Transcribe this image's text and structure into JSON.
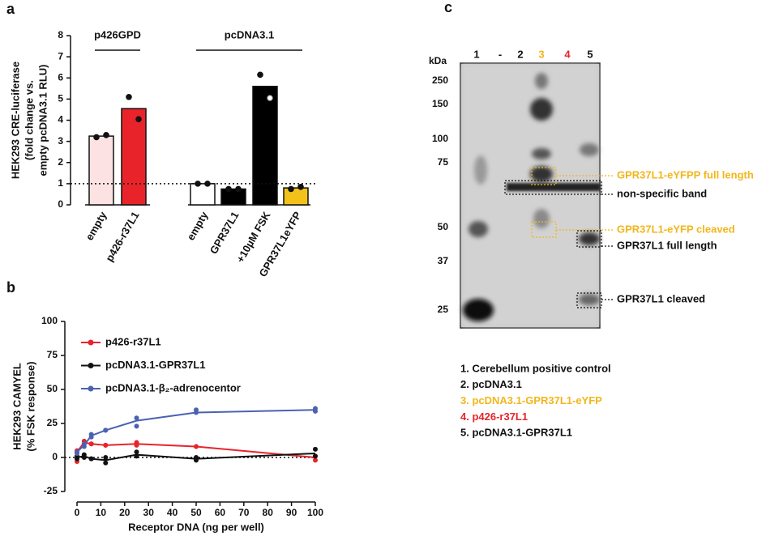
{
  "panel_labels": [
    "a",
    "b",
    "c"
  ],
  "chart_data": [
    {
      "type": "bar",
      "ylabel": [
        "HEK293 CRE-luciferase",
        "(fold change vs.",
        "empty pcDNA3.1 RLU)"
      ],
      "groups": [
        "p426GPD",
        "pcDNA3.1"
      ],
      "categories": [
        "empty",
        "p426-r37L1",
        "empty",
        "GPR37L1",
        "+10µM FSK",
        "GPR37L1eYFP"
      ],
      "values": [
        3.25,
        4.55,
        1.0,
        0.75,
        5.6,
        0.8
      ],
      "colors": [
        "#fde2e3",
        "#e8242a",
        "#ffffff",
        "#000000",
        "#000000",
        "#f2c21b"
      ],
      "points": [
        [
          3.2,
          3.3
        ],
        [
          5.1,
          4.05
        ],
        [
          1.0,
          1.0
        ],
        [
          0.75,
          0.75
        ],
        [
          6.15,
          5.05
        ],
        [
          0.75,
          0.85
        ]
      ],
      "reference_line": 1,
      "ylim": [
        0,
        8
      ],
      "yticks": [
        0,
        1,
        2,
        3,
        4,
        5,
        6,
        7,
        8
      ]
    },
    {
      "type": "line",
      "ylabel": [
        "HEK293 CAMYEL",
        "(% FSK response)"
      ],
      "xlabel": "Receptor DNA (ng per well)",
      "x": [
        0,
        3,
        6,
        12,
        25,
        50,
        100
      ],
      "series": [
        {
          "name": "p426-r37L1",
          "color": "#e8242a",
          "values": [
            4,
            11,
            10,
            9,
            10,
            8,
            0
          ],
          "points": [
            [
              5,
              -3
            ],
            [
              12,
              10
            ],
            [
              10,
              10
            ],
            [
              9,
              9
            ],
            [
              11,
              9
            ],
            [
              8,
              8
            ],
            [
              -2,
              1
            ]
          ]
        },
        {
          "name": "pcDNA3.1-GPR37L1",
          "color": "#111111",
          "values": [
            0,
            1,
            -1,
            -2,
            2,
            -1,
            3
          ],
          "points": [
            [
              -1,
              1
            ],
            [
              2,
              0
            ],
            [
              -1,
              -1
            ],
            [
              0,
              -4
            ],
            [
              4,
              1
            ],
            [
              0,
              -2
            ],
            [
              6,
              1
            ]
          ]
        },
        {
          "name": "pcDNA3.1-β₂-adrenocentor",
          "color": "#4a62b0",
          "values": [
            4,
            9,
            16,
            20,
            27,
            33,
            35
          ],
          "points": [
            [
              4,
              3
            ],
            [
              8,
              10
            ],
            [
              17,
              15
            ],
            [
              20,
              20
            ],
            [
              29,
              23
            ],
            [
              35,
              33
            ],
            [
              36,
              34
            ]
          ]
        }
      ],
      "reference_line": 0,
      "xlim": [
        0,
        100
      ],
      "xticks": [
        0,
        10,
        20,
        30,
        40,
        50,
        60,
        70,
        80,
        90,
        100
      ],
      "ylim": [
        -25,
        100
      ],
      "yticks": [
        -25,
        0,
        25,
        50,
        75,
        100
      ]
    }
  ],
  "blot": {
    "unit": "kDa",
    "markers": [
      "250",
      "150",
      "100",
      "75",
      "50",
      "37",
      "25"
    ],
    "lanes": [
      {
        "label": "1",
        "color": "#111111"
      },
      {
        "label": "-",
        "color": "#111111"
      },
      {
        "label": "2",
        "color": "#111111"
      },
      {
        "label": "3",
        "color": "#f2b61b"
      },
      {
        "label": "4",
        "color": "#e8242a"
      },
      {
        "label": "5",
        "color": "#111111"
      }
    ],
    "annotations": [
      {
        "text": "GPR37L1-eYFPP full length",
        "color": "#f2b61b"
      },
      {
        "text": "non-specific band",
        "color": "#111111"
      },
      {
        "text": "GPR37L1-eYFP cleaved",
        "color": "#f2b61b"
      },
      {
        "text": "GPR37L1 full length",
        "color": "#111111"
      },
      {
        "text": "GPR37L1 cleaved",
        "color": "#111111"
      }
    ],
    "legend": [
      {
        "text": "1. Cerebellum positive control",
        "color": "#111111"
      },
      {
        "text": "2. pcDNA3.1",
        "color": "#111111"
      },
      {
        "text": "3. pcDNA3.1-GPR37L1-eYFP",
        "color": "#f2b61b"
      },
      {
        "text": "4. p426-r37L1",
        "color": "#e8242a"
      },
      {
        "text": "5. pcDNA3.1-GPR37L1",
        "color": "#111111"
      }
    ]
  }
}
